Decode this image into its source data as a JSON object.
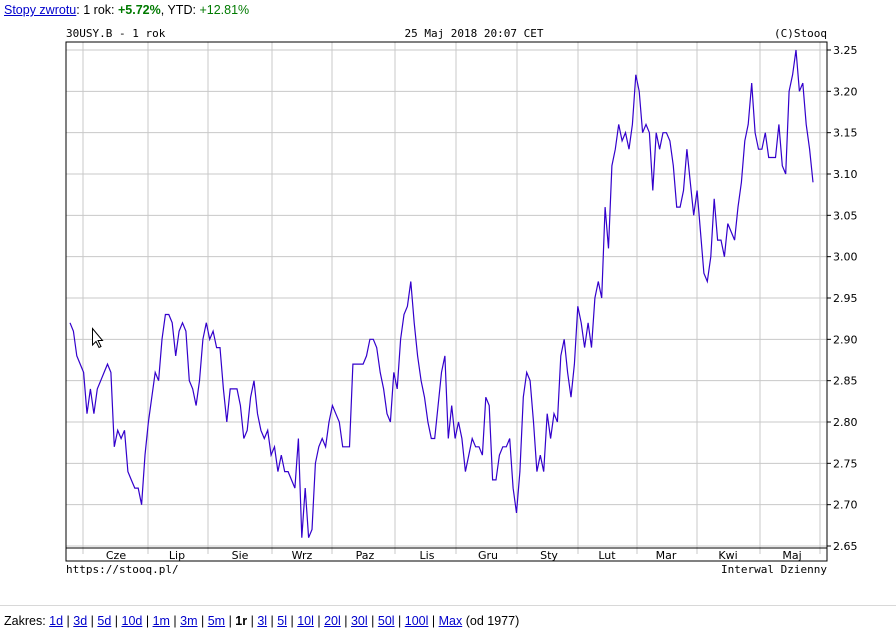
{
  "returns": {
    "link_label": "Stopy zwrotu",
    "colon": ":",
    "period_label": "1 rok:",
    "period_value": "+5.72%",
    "ytd_label": "YTD:",
    "ytd_value": "+12.81%"
  },
  "chart_header": {
    "left": "30USY.B - 1 rok",
    "center": "25 Maj 2018 20:07 CET",
    "right": "(C)Stooq"
  },
  "chart_footer": {
    "left": "https://stooq.pl/",
    "right": "Interwal Dzienny"
  },
  "range_bar": {
    "label": "Zakres:",
    "options": [
      "1d",
      "3d",
      "5d",
      "10d",
      "1m",
      "3m",
      "5m",
      "1r",
      "3l",
      "5l",
      "10l",
      "20l",
      "30l",
      "50l",
      "100l",
      "Max"
    ],
    "selected": "1r",
    "suffix": "(od 1977)"
  },
  "colors": {
    "line": "#3300cc",
    "grid": "#c8c8c8",
    "link": "#0000cc",
    "positive": "#007a00"
  },
  "chart_data": {
    "type": "line",
    "title": "30USY.B - 1 rok",
    "x_tick_labels": [
      "Cze",
      "Lip",
      "Sie",
      "Wrz",
      "Paz",
      "Lis",
      "Gru",
      "Sty",
      "Lut",
      "Mar",
      "Kwi",
      "Maj"
    ],
    "ylim": [
      2.65,
      3.25
    ],
    "y_ticks": [
      "2.65",
      "2.70",
      "2.75",
      "2.80",
      "2.85",
      "2.90",
      "2.95",
      "3.00",
      "3.05",
      "3.10",
      "3.15",
      "3.20",
      "3.25"
    ],
    "grid": true,
    "series": [
      {
        "values": [
          2.92,
          2.91,
          2.88,
          2.87,
          2.86,
          2.81,
          2.84,
          2.81,
          2.84,
          2.85,
          2.86,
          2.87,
          2.86,
          2.77,
          2.79,
          2.78,
          2.79,
          2.74,
          2.73,
          2.72,
          2.72,
          2.7,
          2.76,
          2.8,
          2.83,
          2.86,
          2.85,
          2.9,
          2.93,
          2.93,
          2.92,
          2.88,
          2.91,
          2.92,
          2.91,
          2.85,
          2.84,
          2.82,
          2.85,
          2.9,
          2.92,
          2.9,
          2.91,
          2.89,
          2.89,
          2.84,
          2.8,
          2.84,
          2.84,
          2.84,
          2.82,
          2.78,
          2.79,
          2.83,
          2.85,
          2.81,
          2.79,
          2.78,
          2.79,
          2.76,
          2.77,
          2.74,
          2.76,
          2.74,
          2.74,
          2.73,
          2.72,
          2.78,
          2.66,
          2.72,
          2.66,
          2.67,
          2.75,
          2.77,
          2.78,
          2.77,
          2.8,
          2.82,
          2.81,
          2.8,
          2.77,
          2.77,
          2.77,
          2.87,
          2.87,
          2.87,
          2.87,
          2.88,
          2.9,
          2.9,
          2.89,
          2.86,
          2.84,
          2.81,
          2.8,
          2.86,
          2.84,
          2.9,
          2.93,
          2.94,
          2.97,
          2.92,
          2.88,
          2.85,
          2.83,
          2.8,
          2.78,
          2.78,
          2.82,
          2.86,
          2.88,
          2.78,
          2.82,
          2.78,
          2.8,
          2.78,
          2.74,
          2.76,
          2.78,
          2.77,
          2.77,
          2.76,
          2.83,
          2.82,
          2.73,
          2.73,
          2.76,
          2.77,
          2.77,
          2.78,
          2.72,
          2.69,
          2.74,
          2.83,
          2.86,
          2.85,
          2.8,
          2.74,
          2.76,
          2.74,
          2.81,
          2.78,
          2.81,
          2.8,
          2.88,
          2.9,
          2.86,
          2.83,
          2.87,
          2.94,
          2.92,
          2.89,
          2.92,
          2.89,
          2.95,
          2.97,
          2.95,
          3.06,
          3.01,
          3.11,
          3.13,
          3.16,
          3.14,
          3.15,
          3.13,
          3.16,
          3.22,
          3.2,
          3.15,
          3.16,
          3.15,
          3.08,
          3.15,
          3.13,
          3.15,
          3.15,
          3.14,
          3.11,
          3.06,
          3.06,
          3.08,
          3.13,
          3.09,
          3.05,
          3.08,
          3.03,
          2.98,
          2.97,
          3.0,
          3.07,
          3.02,
          3.02,
          3.0,
          3.04,
          3.03,
          3.02,
          3.06,
          3.09,
          3.14,
          3.16,
          3.21,
          3.15,
          3.13,
          3.13,
          3.15,
          3.12,
          3.12,
          3.12,
          3.16,
          3.11,
          3.1,
          3.2,
          3.22,
          3.25,
          3.2,
          3.21,
          3.16,
          3.13,
          3.09
        ]
      }
    ]
  }
}
